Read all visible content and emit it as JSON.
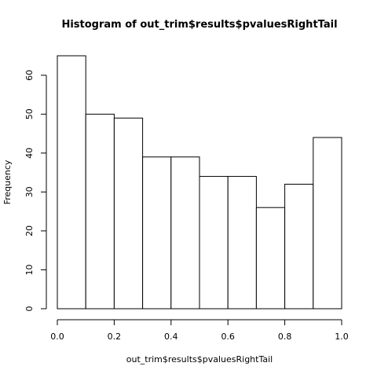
{
  "chart_data": {
    "type": "bar",
    "title": "Histogram of out_trim$results$pvaluesRightTail",
    "xlabel": "out_trim$results$pvaluesRightTail",
    "ylabel": "Frequency",
    "bin_edges": [
      0.0,
      0.1,
      0.2,
      0.3,
      0.4,
      0.5,
      0.6,
      0.7,
      0.8,
      0.9,
      1.0
    ],
    "values": [
      65,
      50,
      49,
      39,
      39,
      34,
      34,
      26,
      32,
      44
    ],
    "xlim": [
      0.0,
      1.0
    ],
    "ylim": [
      0,
      65
    ],
    "x_ticks": [
      0.0,
      0.2,
      0.4,
      0.6,
      0.8,
      1.0
    ],
    "x_tick_labels": [
      "0.0",
      "0.2",
      "0.4",
      "0.6",
      "0.8",
      "1.0"
    ],
    "y_ticks": [
      0,
      10,
      20,
      30,
      40,
      50,
      60
    ],
    "y_tick_labels": [
      "0",
      "10",
      "20",
      "30",
      "40",
      "50",
      "60"
    ],
    "grid": false,
    "bar_fill": "#ffffff",
    "bar_stroke": "#000000",
    "axis_color": "#000000"
  }
}
